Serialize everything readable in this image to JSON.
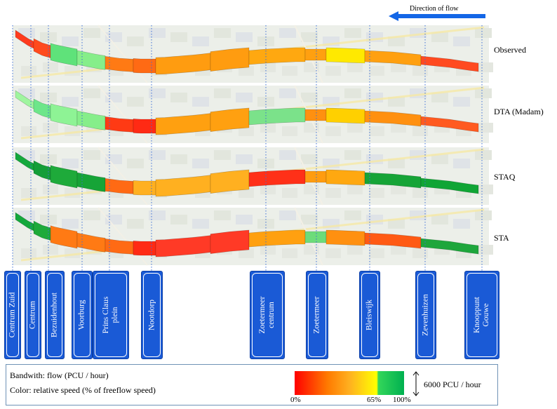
{
  "header": {
    "direction_label": "Direction of flow",
    "arrow_color": "#1366e6"
  },
  "rows": [
    {
      "label": "Observed",
      "segment_colors": [
        "#ff3b1e",
        "#ff4a1e",
        "#5fe27a",
        "#86ee8a",
        "#ff7a14",
        "#ff6a14",
        "#ff9c10",
        "#ff9c10",
        "#ffa810",
        "#ffa010",
        "#ffe900",
        "#ffa010",
        "#ff4a20"
      ]
    },
    {
      "label": "DTA (Madam)",
      "segment_colors": [
        "#9ff59f",
        "#6de68a",
        "#8ef395",
        "#86ee8a",
        "#ff3a14",
        "#ff2a14",
        "#ffa010",
        "#ffa010",
        "#7be28a",
        "#ff9010",
        "#ffd000",
        "#ff9010",
        "#ff5a20"
      ]
    },
    {
      "label": "STAQ",
      "segment_colors": [
        "#14a83c",
        "#149e38",
        "#1eaa3a",
        "#16a437",
        "#ff6a14",
        "#ffb020",
        "#ffb020",
        "#ffb020",
        "#ff3018",
        "#ff9c10",
        "#ffa810",
        "#16a437",
        "#10a535"
      ]
    },
    {
      "label": "STA",
      "segment_colors": [
        "#14a83c",
        "#1eaa3a",
        "#ff7a14",
        "#ff7a14",
        "#ff6a14",
        "#ff2a14",
        "#ff3a26",
        "#ff3a26",
        "#ffa010",
        "#6ddc7a",
        "#ff9010",
        "#ff5a14",
        "#1ea63c"
      ]
    }
  ],
  "stations": [
    {
      "name": "Centrum Zuid"
    },
    {
      "name": "Centrum"
    },
    {
      "name": "Bezuidenhout"
    },
    {
      "name": "Voorburg"
    },
    {
      "name": "Prins Claus\nplein"
    },
    {
      "name": "Nootdorp"
    },
    {
      "name": "Zoetermeer\ncentrum"
    },
    {
      "name": "Zoetermeer"
    },
    {
      "name": "Bleiswijk"
    },
    {
      "name": "Zevenhuizen"
    },
    {
      "name": "Knooppunt\nGouwe"
    }
  ],
  "legend": {
    "bandwidth_label": "Bandwith: flow (PCU / hour)",
    "color_label": "Color: relative speed (% of freeflow speed)",
    "tick_0": "0%",
    "tick_65": "65%",
    "tick_100": "100%",
    "capacity_label": "6000 PCU / hour"
  }
}
